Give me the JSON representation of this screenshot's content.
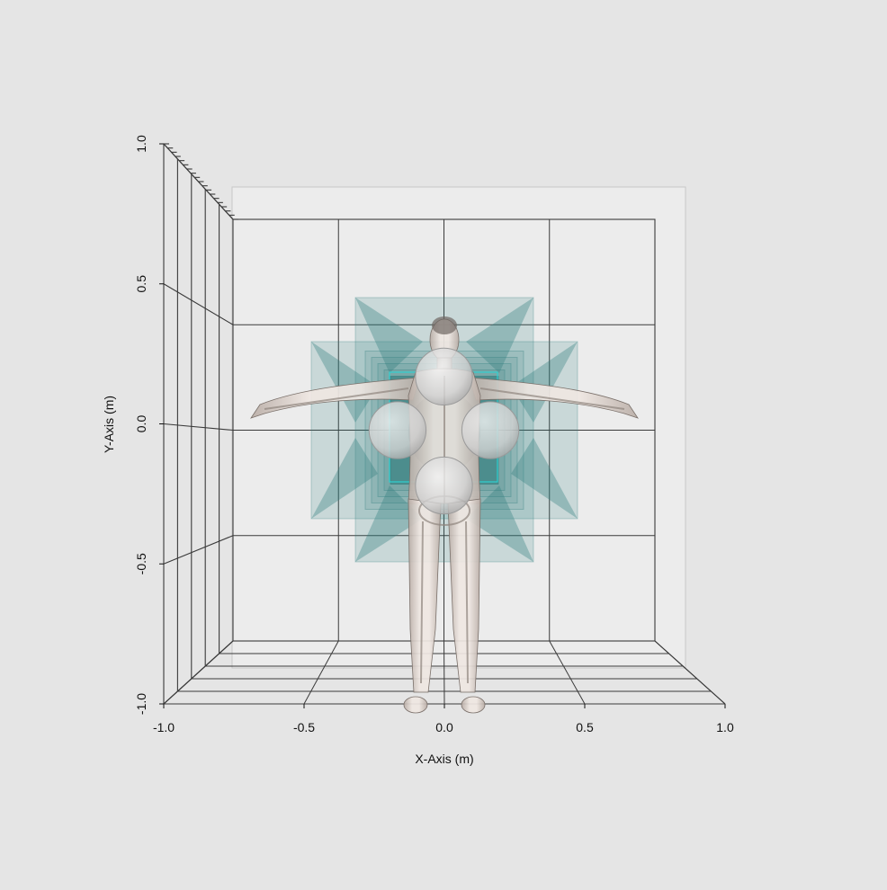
{
  "chart_data": {
    "type": "3d-scene",
    "title": "",
    "view": "front (XY plane), slight perspective",
    "x_axis": {
      "label": "X-Axis (m)",
      "range": [
        -1.0,
        1.0
      ],
      "ticks": [
        -1.0,
        -0.5,
        0.0,
        0.5,
        1.0
      ],
      "tick_labels": [
        "-1.0",
        "-0.5",
        "0.0",
        "0.5",
        "1.0"
      ]
    },
    "y_axis": {
      "label": "Y-Axis (m)",
      "range": [
        -1.0,
        1.0
      ],
      "ticks": [
        -1.0,
        -0.5,
        0.0,
        0.5,
        1.0
      ],
      "tick_labels": [
        "-1.0",
        "-0.5",
        "0.0",
        "0.5",
        "1.0"
      ]
    },
    "grid": true,
    "objects": [
      {
        "kind": "human-body-model",
        "name": "transparent body with skeleton",
        "x_center": 0.0,
        "y_top": 0.38,
        "y_bottom": -1.0,
        "arm_span": [
          -0.68,
          0.68
        ]
      },
      {
        "kind": "sphere",
        "name": "sphere-top",
        "x": 0.0,
        "y": 0.22,
        "radius": 0.1
      },
      {
        "kind": "sphere",
        "name": "sphere-left",
        "x": -0.22,
        "y": 0.0,
        "radius": 0.1
      },
      {
        "kind": "sphere",
        "name": "sphere-right",
        "x": 0.22,
        "y": 0.0,
        "radius": 0.1
      },
      {
        "kind": "sphere",
        "name": "sphere-bottom",
        "x": 0.0,
        "y": -0.22,
        "radius": 0.1
      },
      {
        "kind": "translucent-box-stack",
        "name": "teal field volume",
        "x_range": [
          -0.47,
          0.47
        ],
        "y_range": [
          -0.32,
          0.32
        ]
      }
    ],
    "colors": {
      "background": "#e5e5e5",
      "panel": "#ececec",
      "grid": "#3a3a3a",
      "teal": "#2f7d7d",
      "teal_core": "#0b4c4c",
      "sphere": "#d3d3d3",
      "body": "#e6dcd6"
    }
  }
}
